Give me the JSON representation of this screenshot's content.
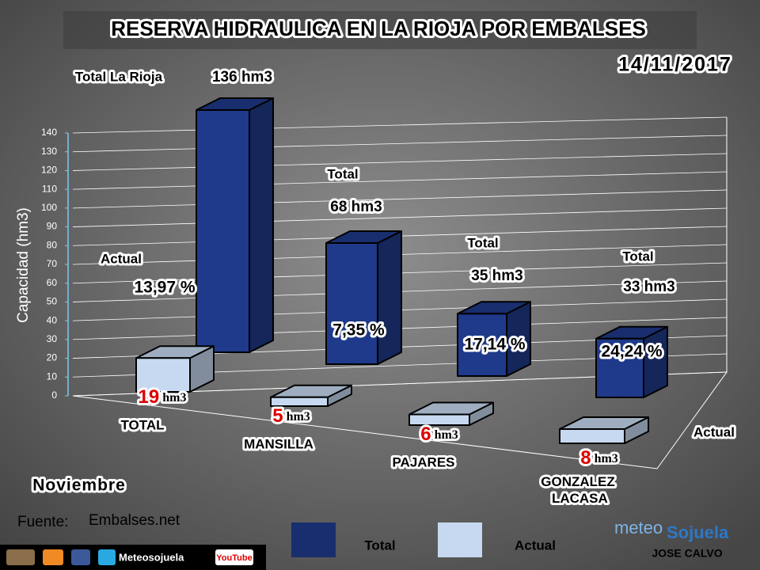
{
  "chart_data": {
    "type": "bar3d",
    "title": "RESERVA HIDRAULICA EN LA RIOJA POR EMBALSES",
    "date": "14/11/2017",
    "ylabel": "Capacidad (hm3)",
    "categories": [
      "TOTAL",
      "MANSILLA",
      "PAJARES",
      "GONZALEZ LACASA"
    ],
    "series": [
      {
        "name": "Total",
        "color": "#1f3a8a",
        "values": [
          136,
          68,
          35,
          33
        ],
        "value_labels": [
          "136 hm3",
          "68 hm3",
          "35 hm3",
          "33 hm3"
        ]
      },
      {
        "name": "Actual",
        "color": "#c6d9f0",
        "values": [
          19,
          5,
          6,
          8
        ],
        "value_labels": [
          "19 hm3",
          "5 hm3",
          "6 hm3",
          "8 hm3"
        ]
      }
    ],
    "percentages": {
      "values": [
        13.97,
        7.35,
        17.14,
        24.24
      ],
      "labels": [
        "13,97 %",
        "7,35 %",
        "17,14 %",
        "24,24 %"
      ]
    },
    "annotations": [
      "Total La Rioja",
      "Total",
      "Total",
      "Total",
      "Actual",
      "Actual"
    ],
    "ylim": [
      0,
      140
    ],
    "yticks": [
      0,
      10,
      20,
      30,
      40,
      50,
      60,
      70,
      80,
      90,
      100,
      110,
      120,
      130,
      140
    ],
    "grid": true,
    "month": "Noviembre",
    "source_label": "Fuente:",
    "source": "Embalses.net",
    "social": [
      "Meteosojuela",
      "YouTube"
    ],
    "brand": [
      "meteo",
      "Sojuela"
    ],
    "author": "JOSE CALVO"
  }
}
